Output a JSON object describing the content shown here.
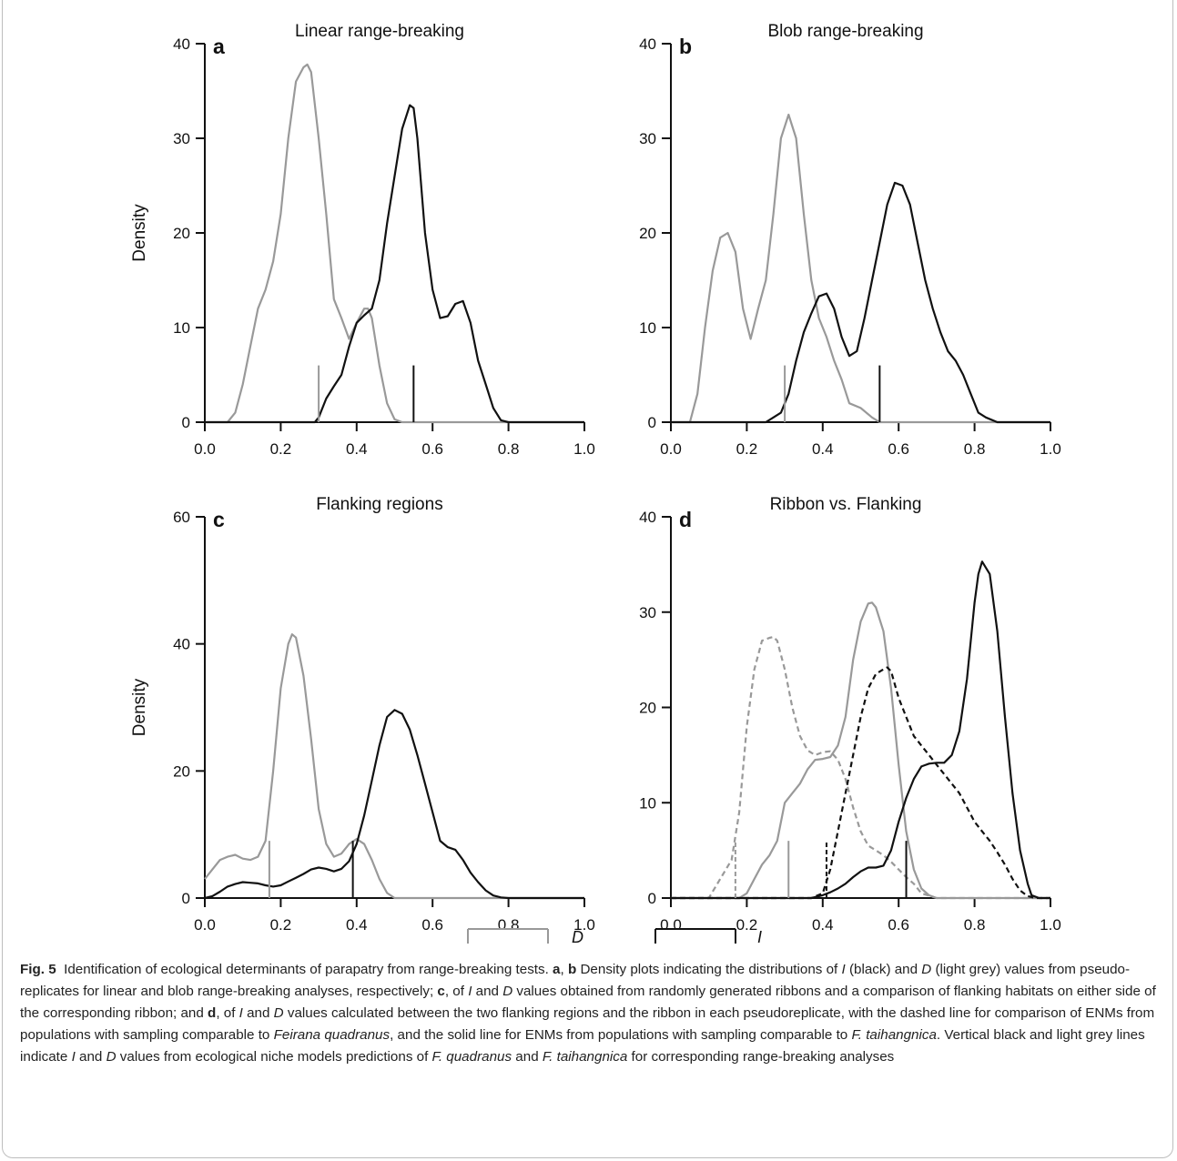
{
  "legend": {
    "d_label": "D",
    "i_label": "I"
  },
  "colors": {
    "d": "#999999",
    "i": "#111111"
  },
  "chart_data": [
    {
      "type": "line",
      "panel": "a",
      "title": "Linear range-breaking",
      "xlabel": "",
      "ylabel": "Density",
      "xlim": [
        0,
        1
      ],
      "ylim": [
        0,
        40
      ],
      "xticks": [
        "0.0",
        "0.2",
        "0.4",
        "0.6",
        "0.8",
        "1.0"
      ],
      "yticks": [
        "0",
        "10",
        "20",
        "30",
        "40"
      ],
      "series": [
        {
          "key": "D",
          "dashed": false,
          "color": "#999999",
          "x": [
            0,
            0.06,
            0.08,
            0.1,
            0.12,
            0.14,
            0.16,
            0.18,
            0.2,
            0.22,
            0.24,
            0.26,
            0.27,
            0.28,
            0.3,
            0.32,
            0.34,
            0.36,
            0.38,
            0.4,
            0.42,
            0.43,
            0.44,
            0.46,
            0.48,
            0.5,
            0.52,
            0.54,
            0.6,
            1.0
          ],
          "y": [
            0,
            0,
            1,
            4,
            8,
            12,
            14,
            17,
            22,
            30,
            36,
            37.5,
            37.8,
            37,
            30,
            22,
            13,
            11,
            8.8,
            10.5,
            12,
            12,
            11,
            6,
            2,
            0.3,
            0,
            0,
            0,
            0
          ]
        },
        {
          "key": "I",
          "dashed": false,
          "color": "#111111",
          "x": [
            0,
            0.27,
            0.29,
            0.3,
            0.32,
            0.34,
            0.36,
            0.38,
            0.4,
            0.42,
            0.44,
            0.46,
            0.48,
            0.5,
            0.52,
            0.54,
            0.55,
            0.56,
            0.58,
            0.6,
            0.62,
            0.64,
            0.66,
            0.68,
            0.7,
            0.72,
            0.74,
            0.76,
            0.78,
            0.8,
            1.0
          ],
          "y": [
            0,
            0,
            0,
            0.5,
            2.5,
            3.8,
            5,
            8,
            10.5,
            11.3,
            12,
            15,
            21,
            26,
            31,
            33.5,
            33.2,
            30,
            20,
            14,
            11,
            11.2,
            12.5,
            12.8,
            10.5,
            6.5,
            4,
            1.5,
            0.2,
            0,
            0
          ]
        }
      ],
      "markers": [
        {
          "key": "D",
          "x": 0.3,
          "height": 6
        },
        {
          "key": "I",
          "x": 0.55,
          "height": 6
        }
      ]
    },
    {
      "type": "line",
      "panel": "b",
      "title": "Blob range-breaking",
      "xlabel": "",
      "ylabel": "",
      "xlim": [
        0,
        1
      ],
      "ylim": [
        0,
        40
      ],
      "xticks": [
        "0.0",
        "0.2",
        "0.4",
        "0.6",
        "0.8",
        "1.0"
      ],
      "yticks": [
        "0",
        "10",
        "20",
        "30",
        "40"
      ],
      "series": [
        {
          "key": "D",
          "dashed": false,
          "color": "#999999",
          "x": [
            0,
            0.05,
            0.07,
            0.09,
            0.11,
            0.13,
            0.15,
            0.17,
            0.19,
            0.21,
            0.23,
            0.25,
            0.27,
            0.29,
            0.31,
            0.33,
            0.35,
            0.37,
            0.39,
            0.41,
            0.43,
            0.45,
            0.47,
            0.5,
            0.53,
            0.55,
            0.6,
            1.0
          ],
          "y": [
            0,
            0,
            3,
            10,
            16,
            19.5,
            20,
            18,
            12,
            8.8,
            12,
            15,
            22,
            30,
            32.5,
            30,
            22,
            15,
            11,
            9,
            6.5,
            4.5,
            2,
            1.5,
            0.5,
            0,
            0,
            0
          ]
        },
        {
          "key": "I",
          "dashed": false,
          "color": "#111111",
          "x": [
            0,
            0.25,
            0.27,
            0.29,
            0.31,
            0.33,
            0.35,
            0.37,
            0.39,
            0.41,
            0.43,
            0.45,
            0.47,
            0.49,
            0.51,
            0.53,
            0.55,
            0.57,
            0.59,
            0.61,
            0.63,
            0.65,
            0.67,
            0.69,
            0.71,
            0.73,
            0.75,
            0.77,
            0.79,
            0.81,
            0.83,
            0.86,
            1.0
          ],
          "y": [
            0,
            0,
            0.5,
            1,
            3,
            6.5,
            9.5,
            11.5,
            13.3,
            13.6,
            12,
            9,
            7,
            7.5,
            11,
            15,
            19,
            23,
            25.3,
            25,
            23,
            19,
            15,
            12,
            9.5,
            7.5,
            6.5,
            5,
            3,
            1,
            0.5,
            0,
            0
          ]
        }
      ],
      "markers": [
        {
          "key": "D",
          "x": 0.3,
          "height": 6
        },
        {
          "key": "I",
          "x": 0.55,
          "height": 6
        }
      ]
    },
    {
      "type": "line",
      "panel": "c",
      "title": "Flanking regions",
      "xlabel": "",
      "ylabel": "Density",
      "xlim": [
        0,
        1
      ],
      "ylim": [
        0,
        60
      ],
      "xticks": [
        "0.0",
        "0.2",
        "0.4",
        "0.6",
        "0.8",
        "1.0"
      ],
      "yticks": [
        "0",
        "20",
        "40",
        "60"
      ],
      "series": [
        {
          "key": "D",
          "dashed": false,
          "color": "#999999",
          "x": [
            0,
            0.02,
            0.04,
            0.06,
            0.08,
            0.1,
            0.12,
            0.14,
            0.16,
            0.18,
            0.2,
            0.22,
            0.23,
            0.24,
            0.26,
            0.28,
            0.3,
            0.32,
            0.34,
            0.36,
            0.38,
            0.4,
            0.42,
            0.44,
            0.46,
            0.48,
            0.5,
            1.0
          ],
          "y": [
            3,
            4.5,
            6,
            6.5,
            6.8,
            6.2,
            6,
            6.5,
            9,
            20,
            33,
            40,
            41.5,
            41,
            35,
            25,
            14,
            8.5,
            6.5,
            7,
            8.5,
            9.3,
            8.5,
            6,
            3,
            0.8,
            0,
            0
          ]
        },
        {
          "key": "I",
          "dashed": false,
          "color": "#111111",
          "x": [
            0,
            0.02,
            0.04,
            0.06,
            0.08,
            0.1,
            0.12,
            0.14,
            0.16,
            0.18,
            0.2,
            0.22,
            0.24,
            0.26,
            0.28,
            0.3,
            0.32,
            0.34,
            0.36,
            0.38,
            0.4,
            0.42,
            0.44,
            0.46,
            0.48,
            0.5,
            0.52,
            0.54,
            0.56,
            0.58,
            0.6,
            0.62,
            0.64,
            0.66,
            0.68,
            0.7,
            0.72,
            0.74,
            0.76,
            0.78,
            0.8,
            1.0
          ],
          "y": [
            0,
            0.3,
            1,
            1.8,
            2.2,
            2.5,
            2.4,
            2.3,
            2,
            1.8,
            2,
            2.6,
            3.2,
            3.8,
            4.5,
            4.8,
            4.6,
            4.2,
            4.6,
            5.8,
            8.5,
            13,
            18.5,
            24,
            28.5,
            29.6,
            29,
            26.5,
            22.5,
            18,
            13.5,
            9,
            8,
            7.6,
            6,
            4,
            2.5,
            1.2,
            0.4,
            0.1,
            0,
            0
          ]
        }
      ],
      "markers": [
        {
          "key": "D",
          "x": 0.17,
          "height": 9
        },
        {
          "key": "I",
          "x": 0.39,
          "height": 9
        }
      ]
    },
    {
      "type": "line",
      "panel": "d",
      "title": "Ribbon vs. Flanking",
      "xlabel": "",
      "ylabel": "",
      "xlim": [
        0,
        1
      ],
      "ylim": [
        0,
        40
      ],
      "xticks": [
        "0.0",
        "0.2",
        "0.4",
        "0.6",
        "0.8",
        "1.0"
      ],
      "yticks": [
        "0",
        "10",
        "20",
        "30",
        "40"
      ],
      "series": [
        {
          "key": "D",
          "dashed": true,
          "color": "#999999",
          "x": [
            0,
            0.1,
            0.13,
            0.16,
            0.18,
            0.2,
            0.22,
            0.24,
            0.26,
            0.27,
            0.28,
            0.3,
            0.32,
            0.34,
            0.36,
            0.38,
            0.4,
            0.42,
            0.44,
            0.46,
            0.48,
            0.5,
            0.52,
            0.54,
            0.56,
            0.58,
            0.6,
            0.62,
            0.64,
            0.66,
            0.7,
            1.0
          ],
          "y": [
            0,
            0,
            2,
            4,
            9,
            18,
            24,
            27,
            27.3,
            27.4,
            27,
            24,
            20,
            17,
            15.5,
            15,
            15.3,
            15.4,
            14.5,
            12.5,
            9.5,
            7,
            5.5,
            5,
            4.5,
            3.8,
            3,
            2.2,
            1.5,
            0.5,
            0,
            0
          ]
        },
        {
          "key": "D",
          "dashed": false,
          "color": "#999999",
          "x": [
            0,
            0.18,
            0.2,
            0.22,
            0.24,
            0.26,
            0.28,
            0.3,
            0.32,
            0.34,
            0.36,
            0.38,
            0.4,
            0.42,
            0.44,
            0.46,
            0.48,
            0.5,
            0.52,
            0.53,
            0.54,
            0.56,
            0.58,
            0.6,
            0.62,
            0.64,
            0.66,
            0.68,
            0.7,
            1.0
          ],
          "y": [
            0,
            0,
            0.5,
            2,
            3.5,
            4.5,
            6,
            10,
            11,
            12,
            13.5,
            14.5,
            14.6,
            14.8,
            16,
            19,
            25,
            29,
            30.9,
            31,
            30.5,
            28,
            22,
            14,
            7,
            3,
            1,
            0.3,
            0,
            0
          ]
        },
        {
          "key": "I",
          "dashed": true,
          "color": "#111111",
          "x": [
            0,
            0.37,
            0.4,
            0.42,
            0.44,
            0.46,
            0.48,
            0.5,
            0.52,
            0.54,
            0.56,
            0.57,
            0.58,
            0.6,
            0.62,
            0.64,
            0.66,
            0.68,
            0.7,
            0.72,
            0.74,
            0.76,
            0.78,
            0.8,
            0.82,
            0.84,
            0.86,
            0.88,
            0.9,
            0.92,
            0.94,
            0.96,
            1.0
          ],
          "y": [
            0,
            0,
            0.5,
            3,
            7,
            11,
            15,
            19,
            22,
            23.5,
            24,
            24.2,
            23.8,
            21,
            19,
            17,
            16,
            15,
            14,
            13,
            12,
            11,
            9.5,
            8,
            7,
            6,
            4.8,
            3.5,
            2,
            0.8,
            0.2,
            0,
            0
          ]
        },
        {
          "key": "I",
          "dashed": false,
          "color": "#111111",
          "x": [
            0,
            0.37,
            0.4,
            0.42,
            0.44,
            0.46,
            0.48,
            0.5,
            0.52,
            0.54,
            0.56,
            0.58,
            0.6,
            0.62,
            0.64,
            0.66,
            0.68,
            0.7,
            0.72,
            0.74,
            0.76,
            0.78,
            0.8,
            0.81,
            0.82,
            0.84,
            0.86,
            0.88,
            0.9,
            0.92,
            0.94,
            0.95,
            0.97,
            1.0
          ],
          "y": [
            0,
            0,
            0.3,
            0.6,
            1,
            1.5,
            2.2,
            2.8,
            3.2,
            3.2,
            3.4,
            5,
            8,
            10.5,
            12.5,
            13.8,
            14.1,
            14.2,
            14.2,
            15,
            17.5,
            23,
            31,
            34,
            35.3,
            34,
            28,
            19,
            11,
            5,
            1.5,
            0.3,
            0,
            0
          ]
        }
      ],
      "markers": [
        {
          "key": "D",
          "dashed": true,
          "x": 0.17,
          "height": 6
        },
        {
          "key": "D",
          "dashed": false,
          "x": 0.31,
          "height": 6
        },
        {
          "key": "I",
          "dashed": true,
          "x": 0.41,
          "height": 6
        },
        {
          "key": "I",
          "dashed": false,
          "x": 0.62,
          "height": 6
        }
      ]
    }
  ],
  "caption": {
    "fig_label": "Fig. 5",
    "segments": [
      {
        "t": "Identification of ecological determinants of parapatry from range-breaking tests. ",
        "s": "n"
      },
      {
        "t": "a",
        "s": "b"
      },
      {
        "t": ", ",
        "s": "n"
      },
      {
        "t": "b",
        "s": "b"
      },
      {
        "t": " Density plots indicating the distributions of ",
        "s": "n"
      },
      {
        "t": "I",
        "s": "i"
      },
      {
        "t": " (black) and ",
        "s": "n"
      },
      {
        "t": "D",
        "s": "i"
      },
      {
        "t": " (light grey) values from pseudo-replicates for linear and blob range-breaking analyses, respectively; ",
        "s": "n"
      },
      {
        "t": "c",
        "s": "b"
      },
      {
        "t": ", of ",
        "s": "n"
      },
      {
        "t": "I",
        "s": "i"
      },
      {
        "t": " and ",
        "s": "n"
      },
      {
        "t": "D",
        "s": "i"
      },
      {
        "t": " values obtained from randomly generated ribbons and a comparison of flanking habitats on either side of the corresponding ribbon; and ",
        "s": "n"
      },
      {
        "t": "d",
        "s": "b"
      },
      {
        "t": ", of ",
        "s": "n"
      },
      {
        "t": "I",
        "s": "i"
      },
      {
        "t": " and ",
        "s": "n"
      },
      {
        "t": "D",
        "s": "i"
      },
      {
        "t": " values calculated between the two flanking regions and the ribbon in each pseudoreplicate, with the dashed line for comparison of ENMs from populations with sampling comparable to ",
        "s": "n"
      },
      {
        "t": "Feirana quadranus",
        "s": "i"
      },
      {
        "t": ", and the solid line for ENMs from populations with sampling comparable to ",
        "s": "n"
      },
      {
        "t": "F. taihangnica",
        "s": "i"
      },
      {
        "t": ". Vertical black and light grey lines indicate ",
        "s": "n"
      },
      {
        "t": "I",
        "s": "i"
      },
      {
        "t": " and ",
        "s": "n"
      },
      {
        "t": "D",
        "s": "i"
      },
      {
        "t": " values from ecological niche models predictions of ",
        "s": "n"
      },
      {
        "t": "F. quadranus",
        "s": "i"
      },
      {
        "t": " and ",
        "s": "n"
      },
      {
        "t": "F. taihangnica",
        "s": "i"
      },
      {
        "t": " for corresponding range-breaking analyses",
        "s": "n"
      }
    ]
  }
}
